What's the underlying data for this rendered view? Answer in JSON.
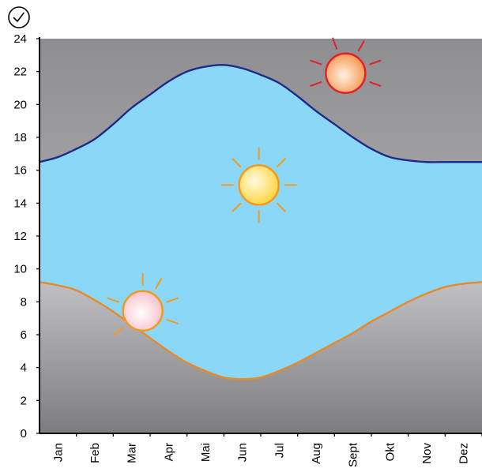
{
  "header": {
    "clock_icon": "clock-icon"
  },
  "chart_data": {
    "type": "area",
    "title": "",
    "xlabel": "",
    "ylabel": "",
    "ylim": [
      0,
      24
    ],
    "yticks": [
      0,
      2,
      4,
      6,
      8,
      10,
      12,
      14,
      16,
      18,
      20,
      22,
      24
    ],
    "categories": [
      "Jan",
      "Feb",
      "Mar",
      "Apr",
      "Mai",
      "Jun",
      "Jul",
      "Aug",
      "Sept",
      "Okt",
      "Nov",
      "Dez"
    ],
    "grid": false,
    "series": [
      {
        "role": "sunset",
        "x": [
          0,
          0.5,
          1,
          1.5,
          2,
          2.5,
          3,
          3.5,
          4,
          4.5,
          5,
          5.5,
          6,
          6.5,
          7,
          7.5,
          8,
          8.5,
          9,
          9.5,
          10,
          10.5,
          11,
          11.5,
          12
        ],
        "values": [
          16.5,
          16.8,
          17.3,
          17.9,
          18.8,
          19.8,
          20.6,
          21.4,
          22.0,
          22.3,
          22.4,
          22.2,
          21.8,
          21.3,
          20.5,
          19.6,
          18.8,
          18.0,
          17.3,
          16.8,
          16.6,
          16.5,
          16.5,
          16.5,
          16.5
        ],
        "color": "#1e2a8a"
      },
      {
        "role": "sunrise",
        "x": [
          0,
          0.5,
          1,
          1.5,
          2,
          2.5,
          3,
          3.5,
          4,
          4.5,
          5,
          5.5,
          6,
          6.5,
          7,
          7.5,
          8,
          8.5,
          9,
          9.5,
          10,
          10.5,
          11,
          11.5,
          12
        ],
        "values": [
          9.2,
          9.0,
          8.7,
          8.1,
          7.4,
          6.6,
          5.8,
          5.0,
          4.3,
          3.8,
          3.4,
          3.3,
          3.4,
          3.8,
          4.3,
          4.9,
          5.5,
          6.1,
          6.8,
          7.4,
          8.0,
          8.5,
          8.9,
          9.1,
          9.2
        ],
        "color": "#e8892a"
      }
    ],
    "annotations": [
      {
        "name": "sunrise-sun-icon",
        "x": 2.8,
        "y": 7.45,
        "style": "rising"
      },
      {
        "name": "noon-sun-icon",
        "x": 5.95,
        "y": 15.1,
        "style": "noon"
      },
      {
        "name": "sunset-sun-icon",
        "x": 8.3,
        "y": 21.9,
        "style": "setting"
      }
    ],
    "colors": {
      "day": "#8ad7f7",
      "night_top": "#9a9a9c",
      "night_bottom": "#b7b7bb",
      "noon_sun": "#ffd84a",
      "noon_rays": "#f39a1e",
      "rising_sun": "#fbd0d6",
      "rising_rays": "#f39a1e",
      "setting_sun": "#f8a25a",
      "setting_rays": "#e41f2d"
    }
  }
}
